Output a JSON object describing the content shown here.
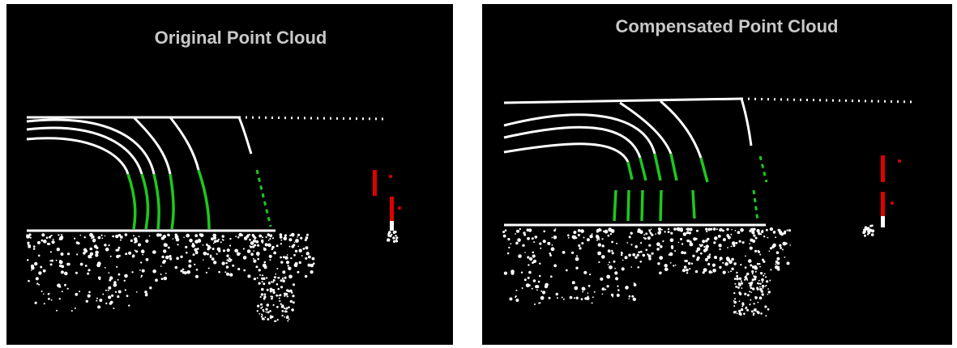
{
  "panels": [
    {
      "title": "Original Point Cloud"
    },
    {
      "title": "Compensated Point Cloud"
    }
  ]
}
